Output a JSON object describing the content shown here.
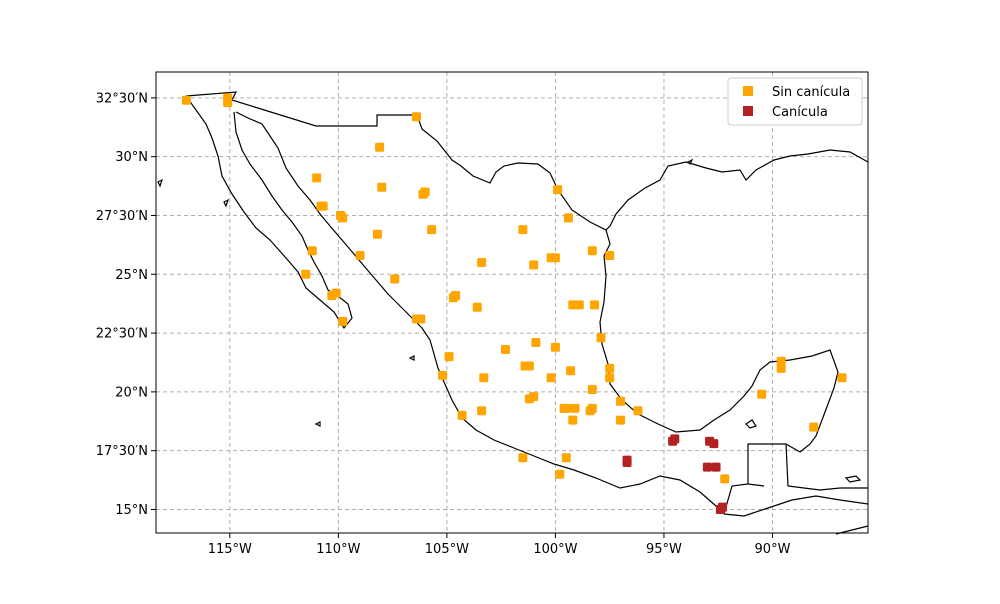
{
  "map": {
    "title": "",
    "projection": "PlateCarree",
    "extent": {
      "lon": [
        -118.4,
        -85.6
      ],
      "lat": [
        14.0,
        33.6
      ]
    },
    "gridlines": {
      "style": "dashed",
      "color": "#b0b0b0"
    },
    "x_ticks": [
      {
        "lon": -115,
        "label": "115°W"
      },
      {
        "lon": -110,
        "label": "110°W"
      },
      {
        "lon": -105,
        "label": "105°W"
      },
      {
        "lon": -100,
        "label": "100°W"
      },
      {
        "lon": -95,
        "label": "95°W"
      },
      {
        "lon": -90,
        "label": "90°W"
      }
    ],
    "y_ticks": [
      {
        "lat": 32.5,
        "label": "32°30′N"
      },
      {
        "lat": 30.0,
        "label": "30°N"
      },
      {
        "lat": 27.5,
        "label": "27°30′N"
      },
      {
        "lat": 25.0,
        "label": "25°N"
      },
      {
        "lat": 22.5,
        "label": "22°30′N"
      },
      {
        "lat": 20.0,
        "label": "20°N"
      },
      {
        "lat": 17.5,
        "label": "17°30′N"
      },
      {
        "lat": 15.0,
        "label": "15°N"
      }
    ],
    "legend": {
      "placement": "top-right",
      "entries": [
        {
          "label": "Sin canícula",
          "color": "#ffa500"
        },
        {
          "label": "Canícula",
          "color": "#b22222"
        }
      ]
    }
  },
  "chart_data": {
    "type": "scatter",
    "xlabel": "",
    "ylabel": "",
    "xlim": [
      -118.4,
      -85.6
    ],
    "ylim": [
      14.0,
      33.6
    ],
    "series": [
      {
        "name": "Sin canícula",
        "color": "#ffa500",
        "points": [
          [
            -117.0,
            32.4
          ],
          [
            -115.1,
            32.5
          ],
          [
            -115.1,
            32.3
          ],
          [
            -106.4,
            31.7
          ],
          [
            -108.1,
            30.4
          ],
          [
            -111.0,
            29.1
          ],
          [
            -108.0,
            28.7
          ],
          [
            -106.0,
            28.5
          ],
          [
            -106.1,
            28.4
          ],
          [
            -110.8,
            27.9
          ],
          [
            -110.7,
            27.9
          ],
          [
            -109.9,
            27.5
          ],
          [
            -109.8,
            27.4
          ],
          [
            -108.2,
            26.7
          ],
          [
            -105.7,
            26.9
          ],
          [
            -99.9,
            28.6
          ],
          [
            -99.4,
            27.4
          ],
          [
            -101.5,
            26.9
          ],
          [
            -100.2,
            25.7
          ],
          [
            -100.0,
            25.7
          ],
          [
            -101.0,
            25.4
          ],
          [
            -103.4,
            25.5
          ],
          [
            -98.3,
            26.0
          ],
          [
            -97.5,
            25.8
          ],
          [
            -111.2,
            26.0
          ],
          [
            -111.5,
            25.0
          ],
          [
            -109.0,
            25.8
          ],
          [
            -107.4,
            24.8
          ],
          [
            -110.1,
            24.2
          ],
          [
            -110.3,
            24.1
          ],
          [
            -109.8,
            23.0
          ],
          [
            -104.7,
            24.0
          ],
          [
            -104.6,
            24.1
          ],
          [
            -103.6,
            23.6
          ],
          [
            -106.4,
            23.1
          ],
          [
            -106.2,
            23.1
          ],
          [
            -99.2,
            23.7
          ],
          [
            -98.9,
            23.7
          ],
          [
            -98.2,
            23.7
          ],
          [
            -97.9,
            22.3
          ],
          [
            -100.9,
            22.1
          ],
          [
            -100.0,
            21.9
          ],
          [
            -102.3,
            21.8
          ],
          [
            -104.9,
            21.5
          ],
          [
            -99.3,
            20.9
          ],
          [
            -101.4,
            21.1
          ],
          [
            -101.2,
            21.1
          ],
          [
            -105.2,
            20.7
          ],
          [
            -103.3,
            20.6
          ],
          [
            -100.2,
            20.6
          ],
          [
            -97.5,
            21.0
          ],
          [
            -97.5,
            20.6
          ],
          [
            -98.3,
            20.1
          ],
          [
            -101.0,
            19.8
          ],
          [
            -101.2,
            19.7
          ],
          [
            -97.0,
            19.6
          ],
          [
            -99.5,
            19.3
          ],
          [
            -99.1,
            19.3
          ],
          [
            -98.3,
            19.3
          ],
          [
            -99.6,
            19.3
          ],
          [
            -98.4,
            19.2
          ],
          [
            -96.2,
            19.2
          ],
          [
            -103.4,
            19.2
          ],
          [
            -104.3,
            19.0
          ],
          [
            -99.2,
            18.8
          ],
          [
            -97.0,
            18.8
          ],
          [
            -101.5,
            17.2
          ],
          [
            -99.5,
            17.2
          ],
          [
            -99.8,
            16.5
          ],
          [
            -92.2,
            16.3
          ],
          [
            -90.5,
            19.9
          ],
          [
            -89.6,
            21.3
          ],
          [
            -89.6,
            21.0
          ],
          [
            -86.8,
            20.6
          ],
          [
            -88.1,
            18.5
          ]
        ]
      },
      {
        "name": "Canícula",
        "color": "#b22222",
        "points": [
          [
            -94.5,
            18.0
          ],
          [
            -94.6,
            17.9
          ],
          [
            -92.9,
            17.9
          ],
          [
            -92.7,
            17.8
          ],
          [
            -96.7,
            17.1
          ],
          [
            -96.7,
            17.0
          ],
          [
            -93.0,
            16.8
          ],
          [
            -92.6,
            16.8
          ],
          [
            -92.3,
            15.1
          ],
          [
            -92.4,
            15.0
          ]
        ]
      }
    ]
  }
}
